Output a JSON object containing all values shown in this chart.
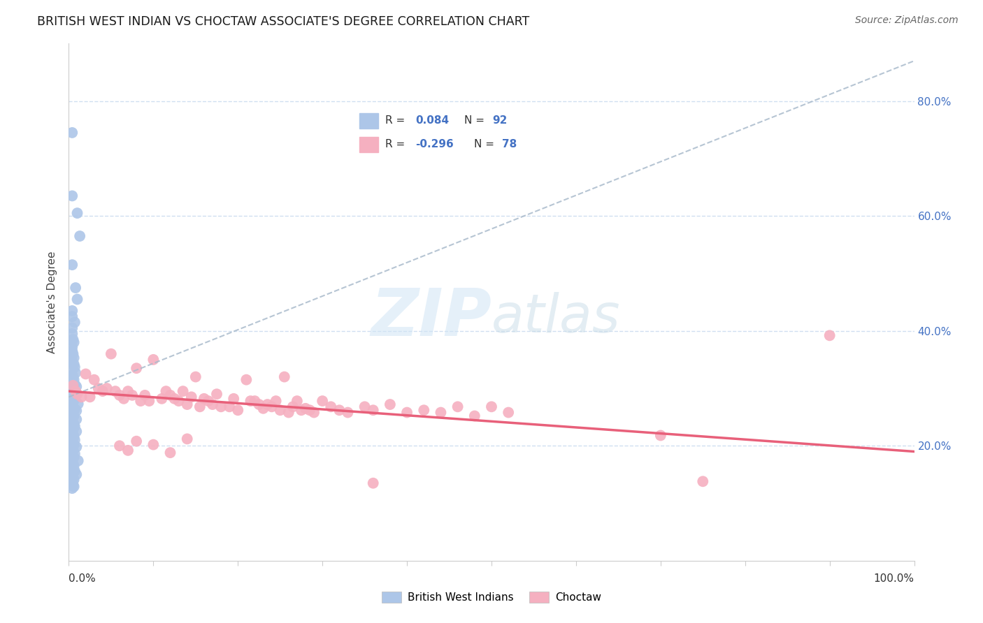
{
  "title": "BRITISH WEST INDIAN VS CHOCTAW ASSOCIATE'S DEGREE CORRELATION CHART",
  "source": "Source: ZipAtlas.com",
  "ylabel": "Associate's Degree",
  "R_blue": 0.084,
  "N_blue": 92,
  "R_pink": -0.296,
  "N_pink": 78,
  "blue_color": "#adc6e8",
  "pink_color": "#f5b0c0",
  "blue_line_color": "#5585c5",
  "pink_line_color": "#e8607a",
  "grid_color": "#d0dff0",
  "ylim": [
    0.0,
    0.9
  ],
  "xlim": [
    0.0,
    1.0
  ],
  "yticks": [
    0.2,
    0.4,
    0.6,
    0.8
  ],
  "ytick_labels": [
    "20.0%",
    "40.0%",
    "60.0%",
    "80.0%"
  ],
  "blue_line_x": [
    0.0,
    1.0
  ],
  "blue_line_y": [
    0.285,
    0.87
  ],
  "pink_line_x": [
    0.0,
    1.0
  ],
  "pink_line_y": [
    0.295,
    0.19
  ],
  "blue_points": [
    [
      0.004,
      0.745
    ],
    [
      0.004,
      0.635
    ],
    [
      0.01,
      0.605
    ],
    [
      0.013,
      0.565
    ],
    [
      0.004,
      0.515
    ],
    [
      0.008,
      0.475
    ],
    [
      0.01,
      0.455
    ],
    [
      0.004,
      0.435
    ],
    [
      0.004,
      0.425
    ],
    [
      0.007,
      0.415
    ],
    [
      0.004,
      0.405
    ],
    [
      0.004,
      0.395
    ],
    [
      0.005,
      0.385
    ],
    [
      0.006,
      0.38
    ],
    [
      0.004,
      0.372
    ],
    [
      0.004,
      0.365
    ],
    [
      0.005,
      0.36
    ],
    [
      0.006,
      0.353
    ],
    [
      0.004,
      0.347
    ],
    [
      0.006,
      0.342
    ],
    [
      0.007,
      0.337
    ],
    [
      0.004,
      0.332
    ],
    [
      0.008,
      0.327
    ],
    [
      0.004,
      0.323
    ],
    [
      0.005,
      0.319
    ],
    [
      0.006,
      0.315
    ],
    [
      0.004,
      0.311
    ],
    [
      0.007,
      0.307
    ],
    [
      0.009,
      0.303
    ],
    [
      0.004,
      0.3
    ],
    [
      0.004,
      0.297
    ],
    [
      0.005,
      0.294
    ],
    [
      0.006,
      0.291
    ],
    [
      0.007,
      0.288
    ],
    [
      0.004,
      0.285
    ],
    [
      0.005,
      0.282
    ],
    [
      0.006,
      0.279
    ],
    [
      0.004,
      0.276
    ],
    [
      0.011,
      0.273
    ],
    [
      0.004,
      0.27
    ],
    [
      0.005,
      0.267
    ],
    [
      0.007,
      0.264
    ],
    [
      0.009,
      0.261
    ],
    [
      0.004,
      0.258
    ],
    [
      0.005,
      0.255
    ],
    [
      0.006,
      0.252
    ],
    [
      0.004,
      0.249
    ],
    [
      0.009,
      0.246
    ],
    [
      0.004,
      0.243
    ],
    [
      0.005,
      0.24
    ],
    [
      0.006,
      0.237
    ],
    [
      0.007,
      0.234
    ],
    [
      0.004,
      0.231
    ],
    [
      0.005,
      0.228
    ],
    [
      0.009,
      0.225
    ],
    [
      0.004,
      0.222
    ],
    [
      0.005,
      0.219
    ],
    [
      0.006,
      0.216
    ],
    [
      0.004,
      0.213
    ],
    [
      0.007,
      0.21
    ],
    [
      0.004,
      0.207
    ],
    [
      0.005,
      0.204
    ],
    [
      0.006,
      0.201
    ],
    [
      0.009,
      0.198
    ],
    [
      0.004,
      0.195
    ],
    [
      0.005,
      0.192
    ],
    [
      0.004,
      0.189
    ],
    [
      0.007,
      0.186
    ],
    [
      0.004,
      0.183
    ],
    [
      0.006,
      0.18
    ],
    [
      0.004,
      0.177
    ],
    [
      0.011,
      0.174
    ],
    [
      0.004,
      0.171
    ],
    [
      0.005,
      0.168
    ],
    [
      0.006,
      0.165
    ],
    [
      0.004,
      0.162
    ],
    [
      0.005,
      0.159
    ],
    [
      0.007,
      0.156
    ],
    [
      0.004,
      0.153
    ],
    [
      0.009,
      0.15
    ],
    [
      0.004,
      0.147
    ],
    [
      0.005,
      0.144
    ],
    [
      0.006,
      0.141
    ],
    [
      0.004,
      0.138
    ],
    [
      0.004,
      0.135
    ],
    [
      0.005,
      0.132
    ],
    [
      0.006,
      0.129
    ],
    [
      0.004,
      0.126
    ],
    [
      0.004,
      0.155
    ]
  ],
  "pink_points": [
    [
      0.005,
      0.305
    ],
    [
      0.008,
      0.295
    ],
    [
      0.01,
      0.29
    ],
    [
      0.015,
      0.285
    ],
    [
      0.02,
      0.325
    ],
    [
      0.025,
      0.285
    ],
    [
      0.03,
      0.315
    ],
    [
      0.035,
      0.3
    ],
    [
      0.04,
      0.295
    ],
    [
      0.045,
      0.3
    ],
    [
      0.05,
      0.36
    ],
    [
      0.055,
      0.295
    ],
    [
      0.06,
      0.288
    ],
    [
      0.065,
      0.282
    ],
    [
      0.07,
      0.295
    ],
    [
      0.075,
      0.288
    ],
    [
      0.08,
      0.335
    ],
    [
      0.085,
      0.278
    ],
    [
      0.09,
      0.288
    ],
    [
      0.095,
      0.278
    ],
    [
      0.1,
      0.35
    ],
    [
      0.11,
      0.282
    ],
    [
      0.115,
      0.295
    ],
    [
      0.12,
      0.288
    ],
    [
      0.125,
      0.282
    ],
    [
      0.13,
      0.278
    ],
    [
      0.135,
      0.295
    ],
    [
      0.14,
      0.272
    ],
    [
      0.145,
      0.285
    ],
    [
      0.15,
      0.32
    ],
    [
      0.155,
      0.268
    ],
    [
      0.16,
      0.282
    ],
    [
      0.165,
      0.278
    ],
    [
      0.17,
      0.272
    ],
    [
      0.175,
      0.29
    ],
    [
      0.18,
      0.268
    ],
    [
      0.19,
      0.268
    ],
    [
      0.195,
      0.282
    ],
    [
      0.2,
      0.262
    ],
    [
      0.21,
      0.315
    ],
    [
      0.215,
      0.278
    ],
    [
      0.22,
      0.278
    ],
    [
      0.225,
      0.272
    ],
    [
      0.23,
      0.265
    ],
    [
      0.235,
      0.272
    ],
    [
      0.24,
      0.268
    ],
    [
      0.245,
      0.278
    ],
    [
      0.25,
      0.262
    ],
    [
      0.255,
      0.32
    ],
    [
      0.26,
      0.258
    ],
    [
      0.265,
      0.268
    ],
    [
      0.27,
      0.278
    ],
    [
      0.275,
      0.262
    ],
    [
      0.28,
      0.265
    ],
    [
      0.285,
      0.262
    ],
    [
      0.29,
      0.258
    ],
    [
      0.3,
      0.278
    ],
    [
      0.31,
      0.268
    ],
    [
      0.32,
      0.262
    ],
    [
      0.33,
      0.258
    ],
    [
      0.35,
      0.268
    ],
    [
      0.36,
      0.262
    ],
    [
      0.38,
      0.272
    ],
    [
      0.4,
      0.258
    ],
    [
      0.42,
      0.262
    ],
    [
      0.44,
      0.258
    ],
    [
      0.46,
      0.268
    ],
    [
      0.48,
      0.252
    ],
    [
      0.5,
      0.268
    ],
    [
      0.52,
      0.258
    ],
    [
      0.06,
      0.2
    ],
    [
      0.07,
      0.192
    ],
    [
      0.08,
      0.208
    ],
    [
      0.1,
      0.202
    ],
    [
      0.12,
      0.188
    ],
    [
      0.14,
      0.212
    ],
    [
      0.36,
      0.135
    ],
    [
      0.7,
      0.218
    ],
    [
      0.75,
      0.138
    ],
    [
      0.9,
      0.392
    ]
  ]
}
